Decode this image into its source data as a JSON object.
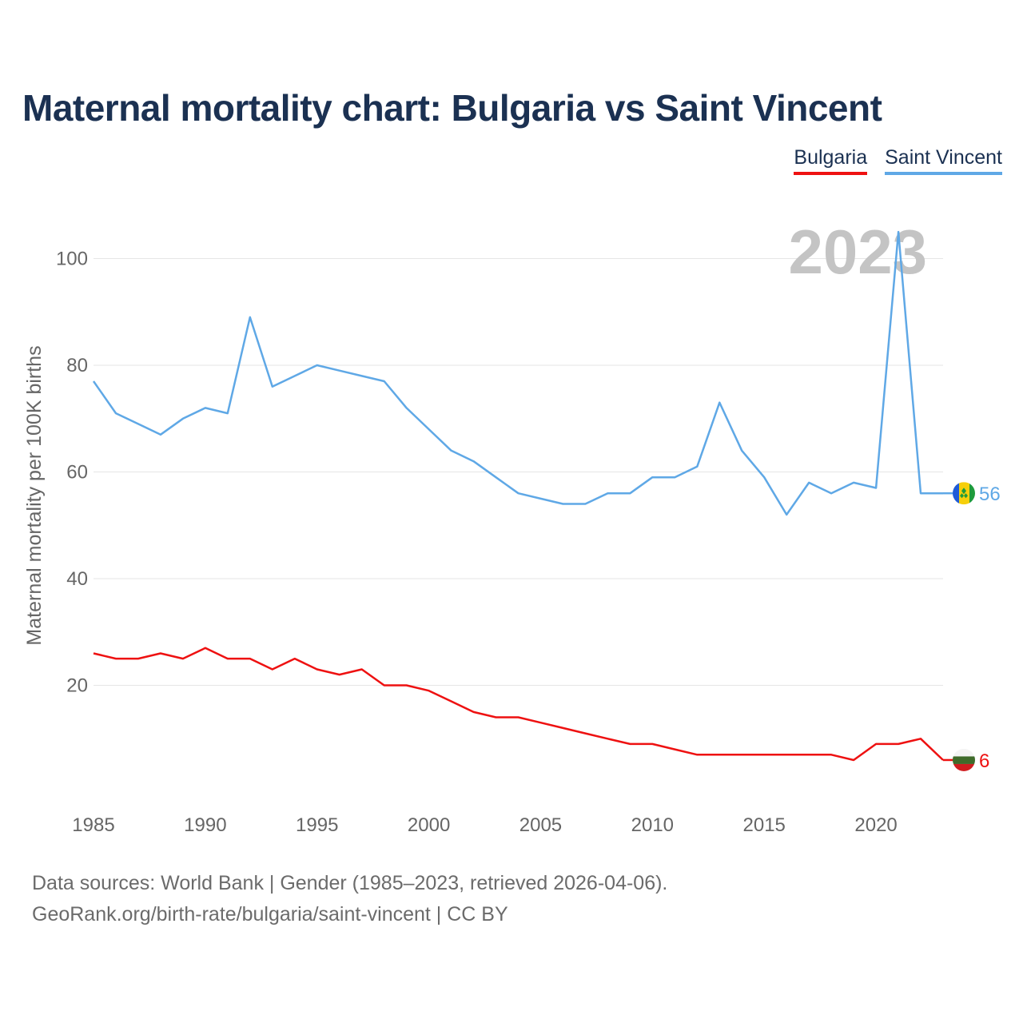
{
  "header": {
    "title": "Maternal mortality chart: Bulgaria vs Saint Vincent"
  },
  "legend": [
    {
      "label": "Bulgaria",
      "color": "#ee1111"
    },
    {
      "label": "Saint Vincent",
      "color": "#5fa8e6"
    }
  ],
  "footer": {
    "line1": "Data sources: World Bank | Gender (1985–2023, retrieved 2026-04-06).",
    "line2": "GeoRank.org/birth-rate/bulgaria/saint-vincent | CC BY"
  },
  "chart_data": {
    "type": "line",
    "title": "Maternal mortality chart: Bulgaria vs Saint Vincent",
    "xlabel": "",
    "ylabel": "Maternal mortality per 100K births",
    "year_label": "2023",
    "xlim": [
      1985,
      2023
    ],
    "ylim": [
      0,
      105
    ],
    "x_ticks": [
      1985,
      1990,
      1995,
      2000,
      2005,
      2010,
      2015,
      2020
    ],
    "y_ticks": [
      20,
      40,
      60,
      80,
      100
    ],
    "x": [
      1985,
      1986,
      1987,
      1988,
      1989,
      1990,
      1991,
      1992,
      1993,
      1994,
      1995,
      1996,
      1997,
      1998,
      1999,
      2000,
      2001,
      2002,
      2003,
      2004,
      2005,
      2006,
      2007,
      2008,
      2009,
      2010,
      2011,
      2012,
      2013,
      2014,
      2015,
      2016,
      2017,
      2018,
      2019,
      2020,
      2021,
      2022,
      2023
    ],
    "series": [
      {
        "name": "Saint Vincent",
        "color": "#5fa8e6",
        "end_label": "56",
        "flag": "saint-vincent-flag",
        "values": [
          77,
          71,
          69,
          67,
          70,
          72,
          71,
          89,
          76,
          78,
          80,
          79,
          78,
          77,
          72,
          68,
          64,
          62,
          59,
          56,
          55,
          54,
          54,
          56,
          56,
          59,
          59,
          61,
          73,
          64,
          59,
          52,
          58,
          56,
          58,
          57,
          105,
          56,
          56
        ]
      },
      {
        "name": "Bulgaria",
        "color": "#ee1111",
        "end_label": "6",
        "flag": "bulgaria-flag",
        "values": [
          26,
          25,
          25,
          26,
          25,
          27,
          25,
          25,
          23,
          25,
          23,
          22,
          23,
          20,
          20,
          19,
          17,
          15,
          14,
          14,
          13,
          12,
          11,
          10,
          9,
          9,
          8,
          7,
          7,
          7,
          7,
          7,
          7,
          7,
          6,
          9,
          9,
          10,
          6
        ]
      }
    ]
  }
}
